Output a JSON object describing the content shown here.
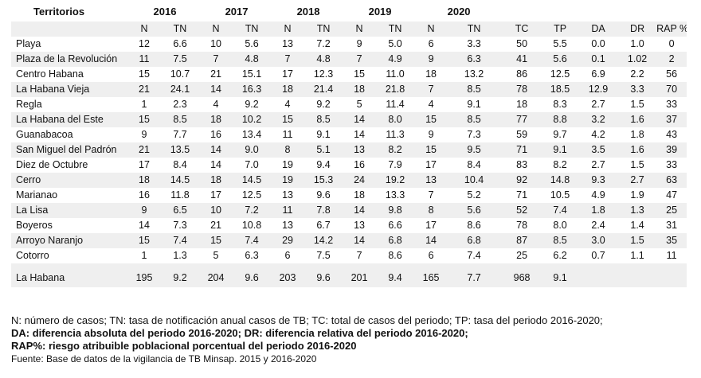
{
  "table": {
    "territorios_label": "Territorios",
    "years": [
      "2016",
      "2017",
      "2018",
      "2019",
      "2020"
    ],
    "subheaders": [
      "N",
      "TN",
      "N",
      "TN",
      "N",
      "TN",
      "N",
      "TN",
      "N",
      "TN",
      "TC",
      "TP",
      "DA",
      "DR",
      "RAP %"
    ],
    "rows": [
      {
        "name": "Playa",
        "values": [
          "12",
          "6.6",
          "10",
          "5.6",
          "13",
          "7.2",
          "9",
          "5.0",
          "6",
          "3.3",
          "50",
          "5.5",
          "0.0",
          "1.0",
          "0"
        ]
      },
      {
        "name": "Plaza de la Revolución",
        "values": [
          "11",
          "7.5",
          "7",
          "4.8",
          "7",
          "4.8",
          "7",
          "4.9",
          "9",
          "6.3",
          "41",
          "5.6",
          "0.1",
          "1.02",
          "2"
        ]
      },
      {
        "name": "Centro Habana",
        "values": [
          "15",
          "10.7",
          "21",
          "15.1",
          "17",
          "12.3",
          "15",
          "11.0",
          "18",
          "13.2",
          "86",
          "12.5",
          "6.9",
          "2.2",
          "56"
        ]
      },
      {
        "name": "La Habana Vieja",
        "values": [
          "21",
          "24.1",
          "14",
          "16.3",
          "18",
          "21.4",
          "18",
          "21.8",
          "7",
          "8.5",
          "78",
          "18.5",
          "12.9",
          "3.3",
          "70"
        ]
      },
      {
        "name": "Regla",
        "values": [
          "1",
          "2.3",
          "4",
          "9.2",
          "4",
          "9.2",
          "5",
          "11.4",
          "4",
          "9.1",
          "18",
          "8.3",
          "2.7",
          "1.5",
          "33"
        ]
      },
      {
        "name": "La Habana del Este",
        "values": [
          "15",
          "8.5",
          "18",
          "10.2",
          "15",
          "8.5",
          "14",
          "8.0",
          "15",
          "8.5",
          "77",
          "8.8",
          "3.2",
          "1.6",
          "37"
        ]
      },
      {
        "name": "Guanabacoa",
        "values": [
          "9",
          "7.7",
          "16",
          "13.4",
          "11",
          "9.1",
          "14",
          "11.3",
          "9",
          "7.3",
          "59",
          "9.7",
          "4.2",
          "1.8",
          "43"
        ]
      },
      {
        "name": "San Miguel del Padrón",
        "values": [
          "21",
          "13.5",
          "14",
          "9.0",
          "8",
          "5.1",
          "13",
          "8.2",
          "15",
          "9.5",
          "71",
          "9.1",
          "3.5",
          "1.6",
          "39"
        ]
      },
      {
        "name": "Diez de Octubre",
        "values": [
          "17",
          "8.4",
          "14",
          "7.0",
          "19",
          "9.4",
          "16",
          "7.9",
          "17",
          "8.4",
          "83",
          "8.2",
          "2.7",
          "1.5",
          "33"
        ]
      },
      {
        "name": "Cerro",
        "values": [
          "18",
          "14.5",
          "18",
          "14.5",
          "19",
          "15.3",
          "24",
          "19.2",
          "13",
          "10.4",
          "92",
          "14.8",
          "9.3",
          "2.7",
          "63"
        ]
      },
      {
        "name": "Marianao",
        "values": [
          "16",
          "11.8",
          "17",
          "12.5",
          "13",
          "9.6",
          "18",
          "13.3",
          "7",
          "5.2",
          "71",
          "10.5",
          "4.9",
          "1.9",
          "47"
        ]
      },
      {
        "name": "La Lisa",
        "values": [
          "9",
          "6.5",
          "10",
          "7.2",
          "11",
          "7.8",
          "14",
          "9.8",
          "8",
          "5.6",
          "52",
          "7.4",
          "1.8",
          "1.3",
          "25"
        ]
      },
      {
        "name": "Boyeros",
        "values": [
          "14",
          "7.3",
          "21",
          "10.8",
          "13",
          "6.7",
          "13",
          "6.6",
          "17",
          "8.6",
          "78",
          "8.0",
          "2.4",
          "1.4",
          "31"
        ]
      },
      {
        "name": "Arroyo Naranjo",
        "values": [
          "15",
          "7.4",
          "15",
          "7.4",
          "29",
          "14.2",
          "14",
          "6.8",
          "14",
          "6.8",
          "87",
          "8.5",
          "3.0",
          "1.5",
          "35"
        ]
      },
      {
        "name": "Cotorro",
        "values": [
          "1",
          "1.3",
          "5",
          "6.3",
          "6",
          "7.5",
          "7",
          "8.6",
          "6",
          "7.4",
          "25",
          "6.2",
          "0.7",
          "1.1",
          "11"
        ]
      }
    ],
    "total": {
      "name": "La Habana",
      "values": [
        "195",
        "9.2",
        "204",
        "9.6",
        "203",
        "9.6",
        "201",
        "9.4",
        "165",
        "7.7",
        "968",
        "9.1",
        "",
        "",
        ""
      ]
    }
  },
  "notes": {
    "line1": "N: número de casos; TN: tasa de notificación anual casos de TB; TC: total de casos del periodo; TP: tasa del periodo 2016-2020;",
    "line2": "DA: diferencia absoluta del periodo 2016-2020; DR: diferencia relativa del periodo 2016-2020;",
    "line3": "RAP%: riesgo atribuible poblacional porcentual del periodo 2016-2020",
    "source": "Fuente: Base de datos de la vigilancia de TB Minsap. 2015 y 2016-2020"
  }
}
